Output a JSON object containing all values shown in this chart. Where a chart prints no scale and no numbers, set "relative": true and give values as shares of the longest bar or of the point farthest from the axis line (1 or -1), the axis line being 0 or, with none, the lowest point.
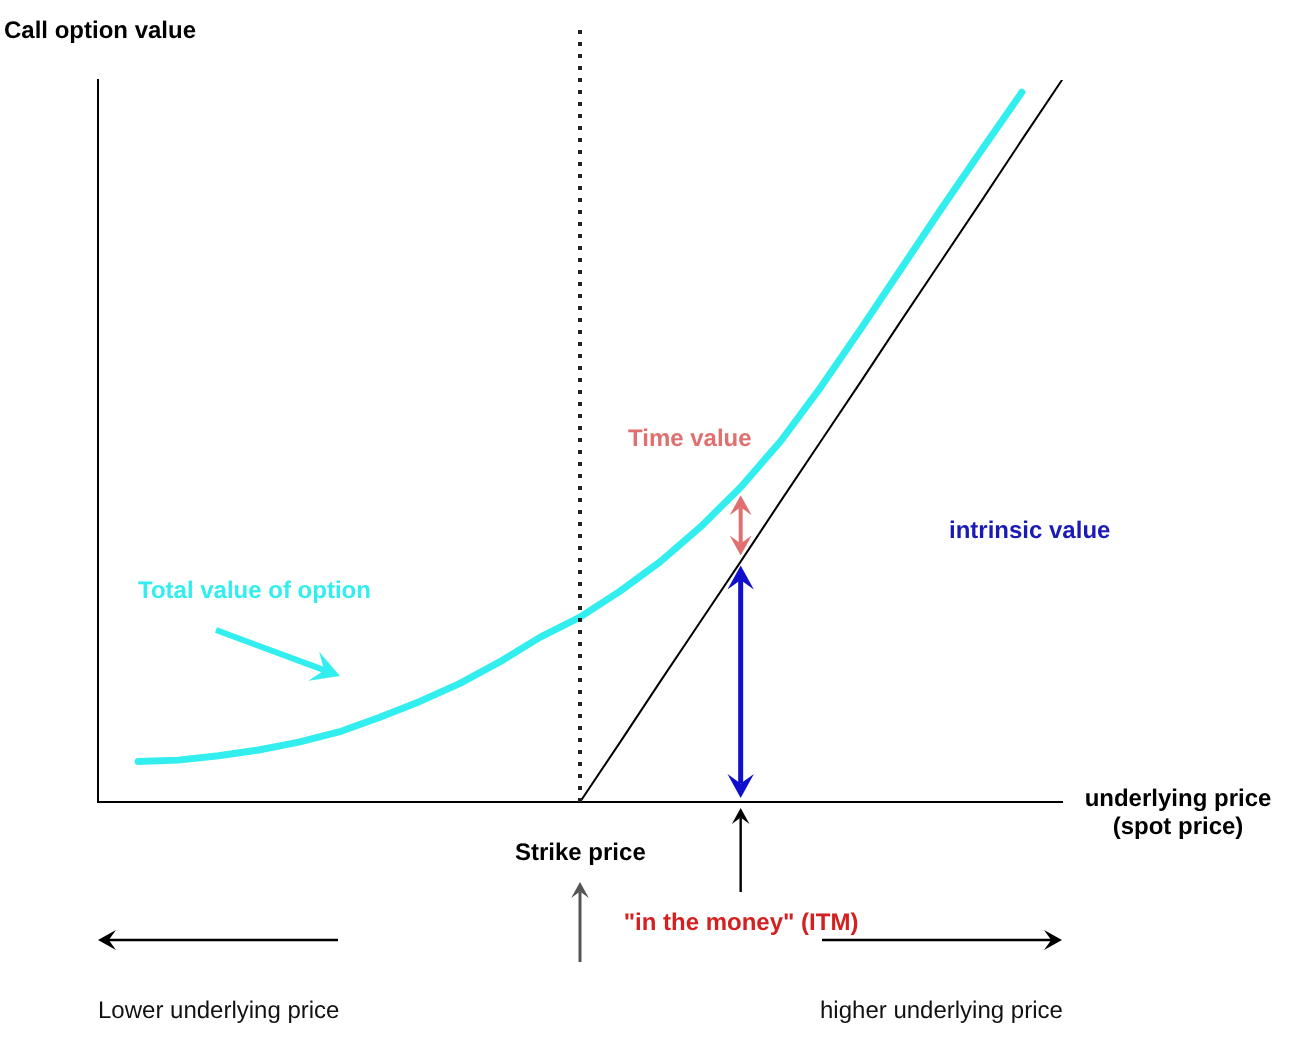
{
  "chart_data": {
    "type": "line",
    "ylabel": "Call option value",
    "xlabel": "underlying price (spot price)",
    "relative": true,
    "marker": "none",
    "categories": [
      null,
      null,
      null,
      null,
      null,
      null,
      null,
      null,
      null,
      null,
      null,
      null,
      null,
      null,
      null,
      null,
      null,
      null,
      null,
      null,
      null,
      null,
      null,
      null,
      null
    ],
    "series": [
      {
        "name": "Total value of option",
        "color": "#33eeee",
        "values": [
          null,
          0.056,
          0.058,
          0.064,
          0.072,
          0.083,
          0.097,
          0.117,
          0.139,
          0.164,
          0.194,
          0.228,
          0.256,
          0.292,
          0.333,
          0.381,
          0.436,
          0.5,
          0.575,
          0.656,
          0.739,
          0.822,
          0.903,
          0.983,
          null
        ]
      },
      {
        "color": "#000000",
        "values": [
          null,
          null,
          null,
          null,
          null,
          null,
          null,
          null,
          null,
          null,
          null,
          null,
          0,
          0.083,
          0.167,
          0.25,
          0.333,
          0.417,
          0.5,
          0.583,
          0.667,
          0.75,
          0.833,
          0.917,
          1
        ]
      }
    ],
    "ref_lines": [
      {
        "axis": "x",
        "label": "Strike price",
        "line_style": "dotted",
        "color": "#222222"
      }
    ],
    "annotations": [
      "Time value",
      "intrinsic value",
      "\"in the money\" (ITM)",
      "Lower underlying price",
      "higher underlying price"
    ]
  }
}
